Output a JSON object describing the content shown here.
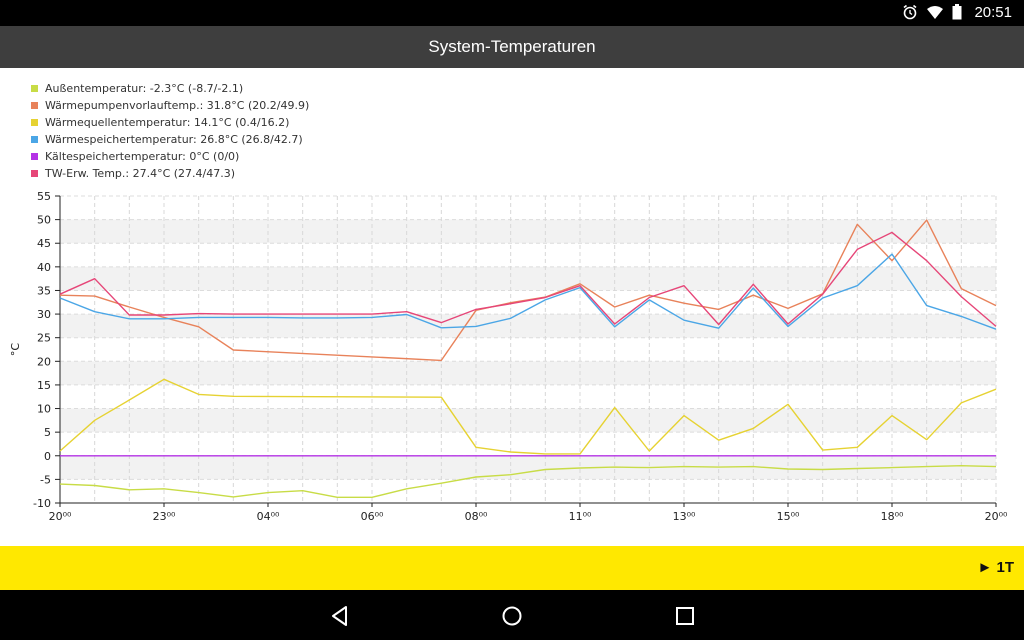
{
  "status_bar": {
    "time": "20:51",
    "icons": [
      "alarm-clock-icon",
      "wifi-icon",
      "battery-icon"
    ]
  },
  "app_bar": {
    "title": "System-Temperaturen"
  },
  "legend": [
    {
      "label": "Außentemperatur: -2.3°C (-8.7/-2.1)",
      "color": "#c8dc46"
    },
    {
      "label": "Wärmepumpenvorlauftemp.: 31.8°C (20.2/49.9)",
      "color": "#e8825a"
    },
    {
      "label": "Wärmequellentemperatur: 14.1°C (0.4/16.2)",
      "color": "#e6d232"
    },
    {
      "label": "Wärmespeichertemperatur: 26.8°C (26.8/42.7)",
      "color": "#4ba6e6"
    },
    {
      "label": "Kältespeichertemperatur: 0°C (0/0)",
      "color": "#b432e6"
    },
    {
      "label": "TW-Erw. Temp.: 27.4°C (27.4/47.3)",
      "color": "#e64678"
    }
  ],
  "chart_data": {
    "type": "line",
    "ylabel": "°C",
    "ylim": [
      -10,
      55
    ],
    "yticks": [
      -10,
      -5,
      0,
      5,
      10,
      15,
      20,
      25,
      30,
      35,
      40,
      45,
      50,
      55
    ],
    "xlim": [
      0,
      27
    ],
    "xtick_labels": [
      {
        "x": 0,
        "label": "20⁰⁰"
      },
      {
        "x": 3,
        "label": "23⁰⁰"
      },
      {
        "x": 6,
        "label": "04⁰⁰"
      },
      {
        "x": 9,
        "label": "06⁰⁰"
      },
      {
        "x": 12,
        "label": "08⁰⁰"
      },
      {
        "x": 15,
        "label": "11⁰⁰"
      },
      {
        "x": 18,
        "label": "13⁰⁰"
      },
      {
        "x": 21,
        "label": "15⁰⁰"
      },
      {
        "x": 24,
        "label": "18⁰⁰"
      },
      {
        "x": 27,
        "label": "20⁰⁰"
      }
    ],
    "grid": true,
    "series": [
      {
        "name": "Außentemperatur",
        "color": "#c8dc46",
        "x": [
          0,
          1,
          2,
          3,
          4,
          5,
          6,
          7,
          8,
          9,
          10,
          11,
          12,
          13,
          14,
          15,
          16,
          17,
          18,
          19,
          20,
          21,
          22,
          23,
          24,
          25,
          26,
          27
        ],
        "values": [
          -6,
          -6.3,
          -7.2,
          -7,
          -7.8,
          -8.7,
          -7.8,
          -7.4,
          -8.8,
          -8.8,
          -7,
          -5.8,
          -4.5,
          -4,
          -2.9,
          -2.6,
          -2.4,
          -2.5,
          -2.3,
          -2.4,
          -2.3,
          -2.8,
          -2.9,
          -2.7,
          -2.5,
          -2.3,
          -2.1,
          -2.3
        ]
      },
      {
        "name": "Wärmepumpenvorlauftemp.",
        "color": "#e8825a",
        "x": [
          0,
          1,
          2,
          3,
          4,
          5,
          11,
          12,
          13,
          14,
          15,
          16,
          17,
          18,
          19,
          20,
          21,
          22,
          23,
          24,
          25,
          26,
          27
        ],
        "values": [
          34,
          33.8,
          31.5,
          29.3,
          27.3,
          22.4,
          20.2,
          30.8,
          32.4,
          33.6,
          36.4,
          31.5,
          34,
          32.3,
          31,
          34,
          31.2,
          34.3,
          49,
          41.3,
          49.9,
          35.4,
          31.8
        ]
      },
      {
        "name": "Wärmequellentemperatur",
        "color": "#e6d232",
        "x": [
          0,
          1,
          2,
          3,
          4,
          5,
          11,
          12,
          13,
          14,
          15,
          16,
          17,
          18,
          19,
          20,
          21,
          22,
          23,
          24,
          25,
          26,
          27
        ],
        "values": [
          1,
          7.5,
          11.8,
          16.2,
          13,
          12.6,
          12.4,
          1.8,
          0.8,
          0.4,
          0.4,
          10.2,
          1,
          8.5,
          3.3,
          5.8,
          10.9,
          1.2,
          1.8,
          8.5,
          3.4,
          11.2,
          14.1
        ]
      },
      {
        "name": "Wärmespeichertemperatur",
        "color": "#4ba6e6",
        "x": [
          0,
          1,
          2,
          3,
          4,
          5,
          6,
          7,
          8,
          9,
          10,
          11,
          12,
          13,
          14,
          15,
          16,
          17,
          18,
          19,
          20,
          21,
          22,
          23,
          24,
          25,
          26,
          27
        ],
        "values": [
          33.4,
          30.5,
          29,
          29,
          29.3,
          29.3,
          29.3,
          29.2,
          29.2,
          29.3,
          29.9,
          27.1,
          27.4,
          29.1,
          33,
          35.6,
          27.3,
          33,
          28.7,
          27,
          35.5,
          27.4,
          33.4,
          36,
          42.7,
          31.8,
          29.5,
          26.8
        ]
      },
      {
        "name": "Kältespeichertemperatur",
        "color": "#b432e6",
        "x": [
          0,
          27
        ],
        "values": [
          0,
          0
        ]
      },
      {
        "name": "TW-Erw. Temp.",
        "color": "#e64678",
        "x": [
          0,
          1,
          2,
          3,
          4,
          5,
          6,
          7,
          8,
          9,
          10,
          11,
          12,
          13,
          14,
          15,
          16,
          17,
          18,
          19,
          20,
          21,
          22,
          23,
          24,
          25,
          26,
          27
        ],
        "values": [
          34.2,
          37.5,
          29.8,
          29.8,
          30.1,
          30,
          30,
          30,
          30,
          30,
          30.5,
          28.2,
          31,
          32.2,
          33.5,
          36,
          27.9,
          33.5,
          36,
          27.8,
          36.3,
          27.9,
          34.2,
          43.7,
          47.3,
          41.3,
          33.7,
          27.4
        ]
      }
    ]
  },
  "bottom_bar": {
    "period_label": "► 1T",
    "color": "#ffe800"
  },
  "nav_bar": {
    "icons": [
      "back-icon",
      "home-icon",
      "recents-icon"
    ]
  }
}
